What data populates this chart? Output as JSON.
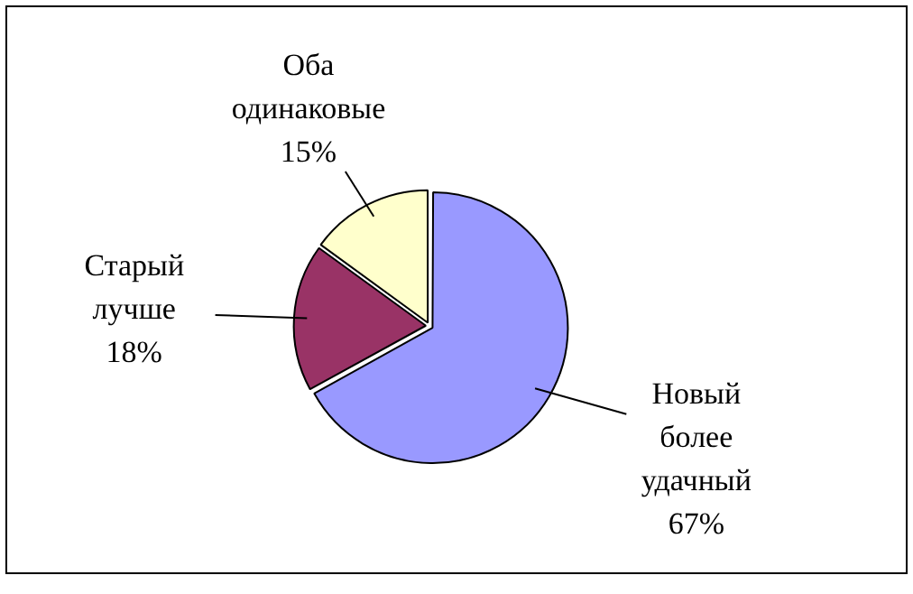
{
  "chart_data": {
    "type": "pie",
    "categories": [
      "Новый более удачный",
      "Старый лучше",
      "Оба одинаковые"
    ],
    "values": [
      67,
      18,
      15
    ],
    "value_labels": [
      "67%",
      "18%",
      "15%"
    ],
    "colors": [
      "#9999ff",
      "#993366",
      "#ffffcc"
    ],
    "legend": false
  }
}
